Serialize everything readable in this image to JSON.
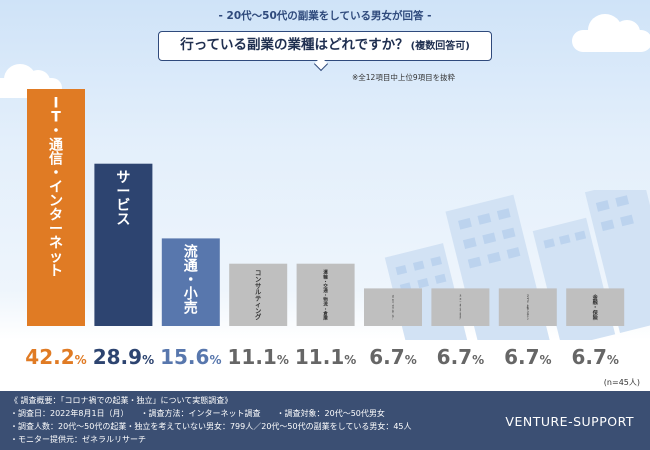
{
  "header": {
    "survey_label": "- 20代～50代の副業をしている男女が回答 -",
    "question": "行っている副業の業種はどれですか？",
    "question_sub": "(複数回答可)",
    "note": "※全12項目中上位9項目を抜粋"
  },
  "chart_data": {
    "type": "bar",
    "title": "行っている副業の業種はどれですか？",
    "categories": [
      "IT・通信・インターネット",
      "サービス",
      "流通・小売",
      "コンサルティング",
      "運輸・交通・物流・倉庫",
      "メーカー（機械・電気・電子）",
      "メーカー（素材・食品・医薬品他）",
      "マスコミ・広告・デザイン",
      "金融・保険"
    ],
    "values": [
      42.2,
      28.9,
      15.6,
      11.1,
      11.1,
      6.7,
      6.7,
      6.7,
      6.7
    ],
    "value_labels": [
      {
        "main": "42.2",
        "unit": "%"
      },
      {
        "main": "28.9",
        "unit": "%"
      },
      {
        "main": "15.6",
        "unit": "%"
      },
      {
        "main": "11.1",
        "unit": "%"
      },
      {
        "main": "11.1",
        "unit": "%"
      },
      {
        "main": "6.7",
        "unit": "%"
      },
      {
        "main": "6.7",
        "unit": "%"
      },
      {
        "main": "6.7",
        "unit": "%"
      },
      {
        "main": "6.7",
        "unit": "%"
      }
    ],
    "bar_labels": [
      {
        "main": "IT・通信・インターネット"
      },
      {
        "main": "サービス"
      },
      {
        "main": "流通・小売"
      },
      {
        "main": "コンサルティング"
      },
      {
        "main": "運輸・交通・物流・倉庫"
      },
      {
        "main": "メーカー",
        "sub": "（機械・電気・電子）"
      },
      {
        "main": "メーカー",
        "sub": "（素材・食品・医薬品他）"
      },
      {
        "main": "マスコミ・広告・デザイン"
      },
      {
        "main": "金融・保険"
      }
    ],
    "colors": [
      "#e07b24",
      "#2d4470",
      "#5877ad",
      "#bfbfbf",
      "#bfbfbf",
      "#bfbfbf",
      "#bfbfbf",
      "#bfbfbf",
      "#bfbfbf"
    ],
    "label_colors": [
      "#ffffff",
      "#ffffff",
      "#ffffff",
      "#333333",
      "#333333",
      "#333333",
      "#333333",
      "#333333",
      "#333333"
    ],
    "value_colors": [
      "#e07b24",
      "#2d4470",
      "#5877ad",
      "#666666",
      "#666666",
      "#666666",
      "#666666",
      "#666666",
      "#666666"
    ],
    "sample_size": "(n=45人)",
    "ylim": [
      0,
      42.2
    ],
    "grid": false,
    "legend": "none"
  },
  "footer": {
    "lines": [
      "《 調査概要：「コロナ禍での起業・独立」について実態調査》",
      "・調査日：2022年8月1日（月）　　・調査方法：インターネット調査　　・調査対象：20代～50代男女",
      "・調査人数：20代～50代の起業・独立を考えていない男女：799人／20代～50代の副業をしている男女：45人",
      "・モニター提供元：ゼネラルリサーチ"
    ],
    "brand": "VENTURE-SUPPORT"
  }
}
